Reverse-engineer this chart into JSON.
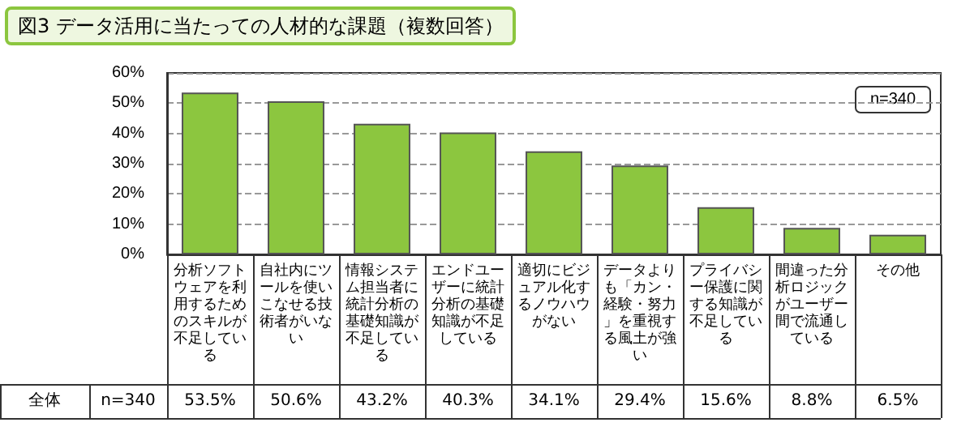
{
  "chart_data": {
    "type": "bar",
    "title": "図3 データ活用に当たっての人材的な課題（複数回答）",
    "categories": [
      "分析ソフトウェアを利用するためのスキルが不足している",
      "自社内にツールを使いこなせる技術者がいない",
      "情報システム担当者に統計分析の基礎知識が不足している",
      "エンドユーザーに統計分析の基礎知識が不足している",
      "適切にビジュアル化するノウハウがない",
      "データよりも「カン・経験・努力」を重視する風土が強い",
      "プライバシー保護に関する知識が不足している",
      "間違った分析ロジックがユーザー間で流通している",
      "その他"
    ],
    "values": [
      53.5,
      50.6,
      43.2,
      40.3,
      34.1,
      29.4,
      15.6,
      8.8,
      6.5
    ],
    "value_labels": [
      "53.5%",
      "50.6%",
      "43.2%",
      "40.3%",
      "34.1%",
      "29.4%",
      "15.6%",
      "8.8%",
      "6.5%"
    ],
    "color": "#8cc63f",
    "ylim": [
      0,
      60
    ],
    "yticks": [
      {
        "value": 0,
        "label": "0%"
      },
      {
        "value": 10,
        "label": "10%"
      },
      {
        "value": 20,
        "label": "20%"
      },
      {
        "value": 30,
        "label": "30%"
      },
      {
        "value": 40,
        "label": "40%"
      },
      {
        "value": 50,
        "label": "50%"
      },
      {
        "value": 60,
        "label": "60%"
      }
    ],
    "grid": "y",
    "annotations": [
      "n=340",
      "全体",
      "n=340"
    ]
  }
}
